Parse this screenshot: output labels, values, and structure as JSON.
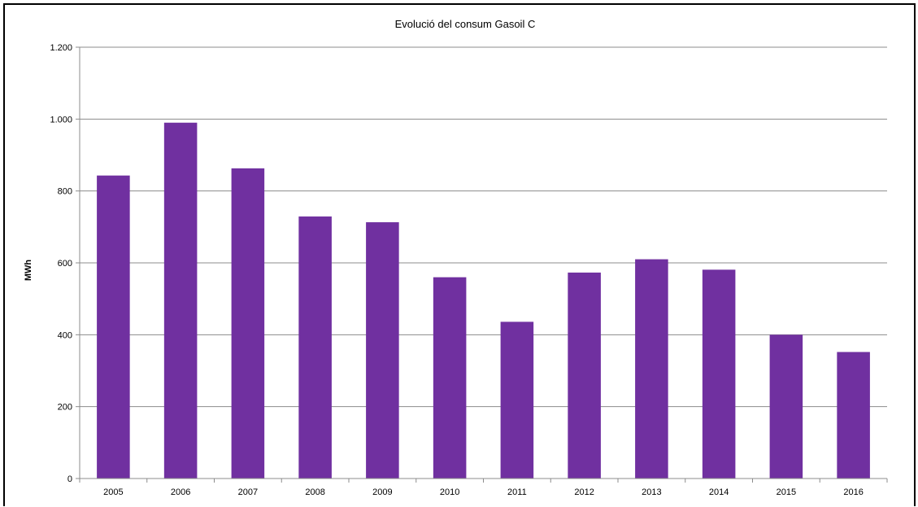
{
  "chart_data": {
    "type": "bar",
    "title": "Evolució del consum  Gasoil C",
    "xlabel": "",
    "ylabel": "MWh",
    "categories": [
      "2005",
      "2006",
      "2007",
      "2008",
      "2009",
      "2010",
      "2011",
      "2012",
      "2013",
      "2014",
      "2015",
      "2016"
    ],
    "values": [
      843,
      990,
      863,
      729,
      713,
      560,
      436,
      573,
      610,
      581,
      400,
      352
    ],
    "ylim": [
      0,
      1200
    ],
    "yticks": [
      0,
      200,
      400,
      600,
      800,
      1000,
      1200
    ],
    "ytick_labels": [
      "0",
      "200",
      "400",
      "600",
      "800",
      "1.000",
      "1.200"
    ],
    "grid": true,
    "legend": "none",
    "colors": {
      "bar": "#7030A0",
      "grid": "#8c8c8c",
      "axis": "#8c8c8c"
    }
  }
}
